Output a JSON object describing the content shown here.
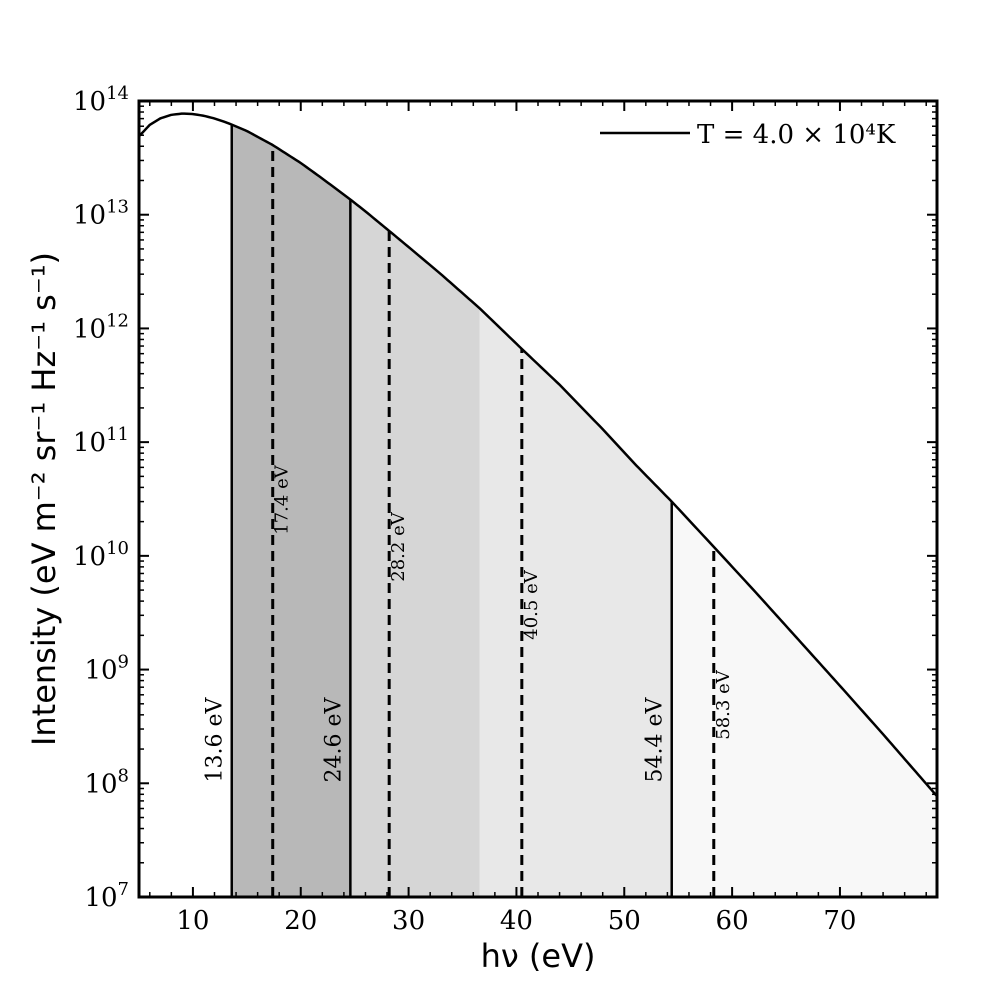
{
  "chart_data": {
    "type": "line",
    "xlabel": "hν (eV)",
    "ylabel": "Intensity (eV m⁻² sr⁻¹ Hz⁻¹ s⁻¹)",
    "xlim": [
      5,
      79
    ],
    "ylim": [
      10000000.0,
      100000000000000.0
    ],
    "yscale": "log",
    "x_ticks": [
      10,
      20,
      30,
      40,
      50,
      60,
      70
    ],
    "y_ticks": [
      {
        "value": 10000000.0,
        "mantissa": "10",
        "exp": "7"
      },
      {
        "value": 100000000.0,
        "mantissa": "10",
        "exp": "8"
      },
      {
        "value": 1000000000.0,
        "mantissa": "10",
        "exp": "9"
      },
      {
        "value": 10000000000.0,
        "mantissa": "10",
        "exp": "10"
      },
      {
        "value": 100000000000.0,
        "mantissa": "10",
        "exp": "11"
      },
      {
        "value": 1000000000000.0,
        "mantissa": "10",
        "exp": "12"
      },
      {
        "value": 10000000000000.0,
        "mantissa": "10",
        "exp": "13"
      },
      {
        "value": 100000000000000.0,
        "mantissa": "10",
        "exp": "14"
      }
    ],
    "grid": false,
    "legend": {
      "placement": "top-right",
      "entries": [
        {
          "label": "T = 4.0 × 10⁴K",
          "style": "solid",
          "color": "#000000"
        }
      ]
    },
    "series": [
      {
        "name": "T = 4.0 × 10⁴K",
        "temperature_K": 40000,
        "x": [
          5,
          6,
          7,
          8,
          9,
          10,
          11,
          12,
          13,
          13.6,
          15,
          17.4,
          20,
          22,
          24.6,
          26,
          28.2,
          30,
          33,
          36.6,
          40.5,
          44,
          48,
          51,
          54.4,
          58.3,
          62,
          66,
          70,
          74,
          79
        ],
        "y": [
          48900000000000.0,
          61700000000000.0,
          70500000000000.0,
          75600000000000.0,
          77500000000000.0,
          76800000000000.0,
          74200000000000.0,
          70200000000000.0,
          65200000000000.0,
          62000000000000.0,
          54500000000000.0,
          41000000000000.0,
          28500000000000.0,
          20800000000000.0,
          13600000000000.0,
          10700000000000.0,
          7200000000000.0,
          5200000000000.0,
          3000000000000.0,
          1500000000000.0,
          660000000000.0,
          320000000000.0,
          130000000000.0,
          64000000000.0,
          30000000000.0,
          12000000000.0,
          5000000000.0,
          1900000000.0,
          720000000.0,
          270000000.0,
          77000000.0
        ]
      }
    ],
    "shaded_bands": [
      {
        "x0": 13.6,
        "x1": 24.6,
        "color": "#b8b8b8"
      },
      {
        "x0": 24.6,
        "x1": 36.6,
        "color": "#d6d6d6"
      },
      {
        "x0": 36.6,
        "x1": 54.4,
        "color": "#e8e8e8"
      },
      {
        "x0": 54.4,
        "x1": 79,
        "color": "#f8f8f8"
      }
    ],
    "vertical_lines": [
      {
        "x": 13.6,
        "y_top": 62000000000000.0,
        "style": "solid",
        "label": "13.6 eV"
      },
      {
        "x": 17.4,
        "y_top": 41000000000000.0,
        "style": "dashed",
        "label": "17.4 eV"
      },
      {
        "x": 24.6,
        "y_top": 13600000000000.0,
        "style": "solid",
        "label": "24.6 eV"
      },
      {
        "x": 28.2,
        "y_top": 7200000000000.0,
        "style": "dashed",
        "label": "28.2 eV"
      },
      {
        "x": 40.5,
        "y_top": 660000000000.0,
        "style": "dashed",
        "label": "40.5 eV"
      },
      {
        "x": 54.4,
        "y_top": 30000000000.0,
        "style": "solid",
        "label": "54.4 eV"
      },
      {
        "x": 58.3,
        "y_top": 12000000000.0,
        "style": "dashed",
        "label": "58.3 eV"
      }
    ]
  }
}
